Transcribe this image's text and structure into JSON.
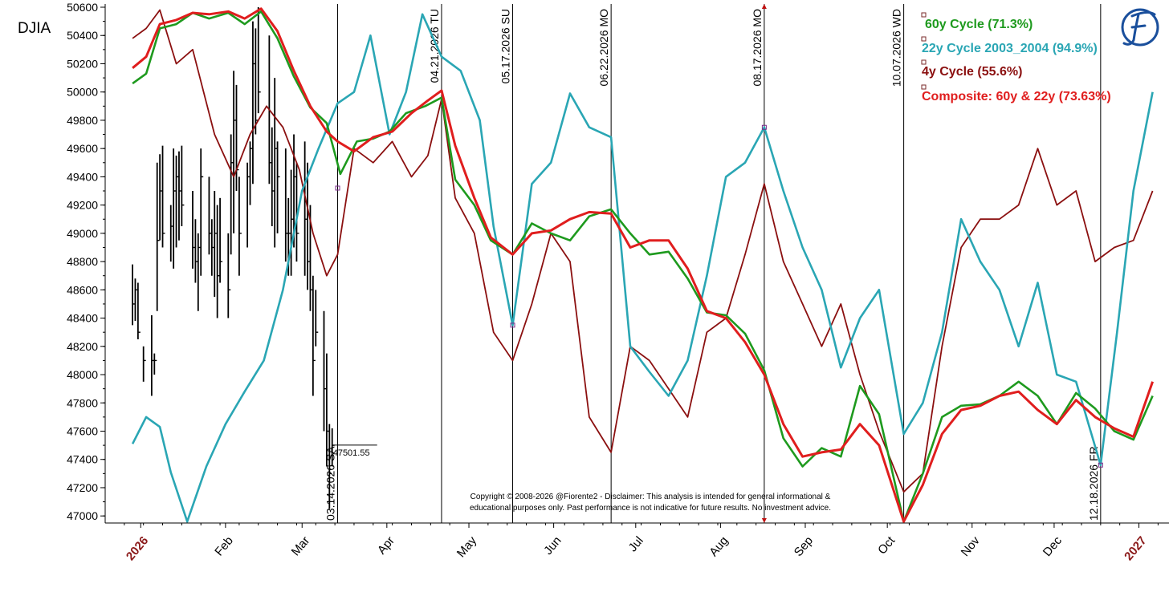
{
  "chart_data": {
    "type": "line",
    "title": "DJIA",
    "ylim": [
      46950,
      50600
    ],
    "y_ticks": [
      47000,
      47200,
      47400,
      47600,
      47800,
      48000,
      48200,
      48400,
      48600,
      48800,
      49000,
      49200,
      49400,
      49600,
      49800,
      50000,
      50200,
      50400,
      50600
    ],
    "x_labels": [
      {
        "label": "2026",
        "date": "2026-01-01",
        "year": true
      },
      {
        "label": "Feb",
        "date": "2026-02-01",
        "year": false
      },
      {
        "label": "Mar",
        "date": "2026-03-01",
        "year": false
      },
      {
        "label": "Apr",
        "date": "2026-04-01",
        "year": false
      },
      {
        "label": "May",
        "date": "2026-05-01",
        "year": false
      },
      {
        "label": "Jun",
        "date": "2026-06-01",
        "year": false
      },
      {
        "label": "Jul",
        "date": "2026-07-01",
        "year": false
      },
      {
        "label": "Aug",
        "date": "2026-08-01",
        "year": false
      },
      {
        "label": "Sep",
        "date": "2026-09-01",
        "year": false
      },
      {
        "label": "Oct",
        "date": "2026-10-01",
        "year": false
      },
      {
        "label": "Nov",
        "date": "2026-11-01",
        "year": false
      },
      {
        "label": "Dec",
        "date": "2026-12-01",
        "year": false
      },
      {
        "label": "2027",
        "date": "2027-01-01",
        "year": true
      }
    ],
    "vertical_markers": [
      {
        "label": "03.14.2026 SA",
        "date": "2026-03-14"
      },
      {
        "label": "04.21.2026 TU",
        "date": "2026-04-21"
      },
      {
        "label": "05.17.2026 SU",
        "date": "2026-05-17"
      },
      {
        "label": "06.22.2026 MO",
        "date": "2026-06-22"
      },
      {
        "label": "08.17.2026 MO",
        "date": "2026-08-17"
      },
      {
        "label": "10.07.2026 WD",
        "date": "2026-10-07"
      },
      {
        "label": "12.18.2026 FR",
        "date": "2026-12-18"
      }
    ],
    "last_price": {
      "value": 47501.55,
      "label": "47501.55"
    },
    "series": [
      {
        "name": "60y Cycle (71.3%)",
        "color": "#1e9a1e",
        "x": [
          "2025-12-29",
          "2026-01-03",
          "2026-01-08",
          "2026-01-14",
          "2026-01-20",
          "2026-01-26",
          "2026-02-02",
          "2026-02-08",
          "2026-02-14",
          "2026-02-20",
          "2026-02-26",
          "2026-03-04",
          "2026-03-10",
          "2026-03-15",
          "2026-03-21",
          "2026-03-27",
          "2026-04-02",
          "2026-04-08",
          "2026-04-15",
          "2026-04-21",
          "2026-04-26",
          "2026-05-03",
          "2026-05-09",
          "2026-05-17",
          "2026-05-24",
          "2026-05-31",
          "2026-06-07",
          "2026-06-14",
          "2026-06-22",
          "2026-06-29",
          "2026-07-06",
          "2026-07-13",
          "2026-07-20",
          "2026-07-27",
          "2026-08-03",
          "2026-08-10",
          "2026-08-17",
          "2026-08-24",
          "2026-08-31",
          "2026-09-07",
          "2026-09-14",
          "2026-09-21",
          "2026-09-28",
          "2026-10-07",
          "2026-10-14",
          "2026-10-21",
          "2026-10-28",
          "2026-11-04",
          "2026-11-11",
          "2026-11-18",
          "2026-11-25",
          "2026-12-02",
          "2026-12-09",
          "2026-12-16",
          "2026-12-23",
          "2026-12-30",
          "2027-01-06"
        ],
        "values": [
          50060,
          50130,
          50450,
          50480,
          50560,
          50520,
          50560,
          50480,
          50570,
          50380,
          50110,
          49890,
          49780,
          49420,
          49650,
          49670,
          49720,
          49850,
          49900,
          49960,
          49380,
          49200,
          48950,
          48850,
          49070,
          49000,
          48950,
          49120,
          49170,
          49000,
          48850,
          48870,
          48680,
          48440,
          48420,
          48290,
          48030,
          47550,
          47350,
          47480,
          47420,
          47920,
          47720,
          46960,
          47300,
          47700,
          47780,
          47790,
          47850,
          47950,
          47850,
          47650,
          47870,
          47760,
          47600,
          47540,
          47850
        ]
      },
      {
        "name": "22y Cycle 2003_2004 (94.9%)",
        "color": "#2aa6b4",
        "x": [
          "2025-12-29",
          "2026-01-03",
          "2026-01-08",
          "2026-01-12",
          "2026-01-18",
          "2026-01-25",
          "2026-02-01",
          "2026-02-08",
          "2026-02-15",
          "2026-02-22",
          "2026-03-01",
          "2026-03-07",
          "2026-03-14",
          "2026-03-20",
          "2026-03-26",
          "2026-04-02",
          "2026-04-08",
          "2026-04-14",
          "2026-04-21",
          "2026-04-28",
          "2026-05-05",
          "2026-05-10",
          "2026-05-17",
          "2026-05-24",
          "2026-05-31",
          "2026-06-07",
          "2026-06-14",
          "2026-06-22",
          "2026-06-29",
          "2026-07-06",
          "2026-07-13",
          "2026-07-20",
          "2026-07-27",
          "2026-08-03",
          "2026-08-10",
          "2026-08-17",
          "2026-08-24",
          "2026-08-31",
          "2026-09-07",
          "2026-09-14",
          "2026-09-21",
          "2026-09-28",
          "2026-10-07",
          "2026-10-14",
          "2026-10-21",
          "2026-10-28",
          "2026-11-04",
          "2026-11-11",
          "2026-11-18",
          "2026-11-25",
          "2026-12-02",
          "2026-12-09",
          "2026-12-18",
          "2026-12-24",
          "2026-12-30",
          "2027-01-06"
        ],
        "values": [
          47510,
          47700,
          47630,
          47310,
          46960,
          47350,
          47650,
          47880,
          48100,
          48600,
          49300,
          49600,
          49920,
          50000,
          50400,
          49700,
          50000,
          50550,
          50250,
          50150,
          49800,
          49050,
          48350,
          49350,
          49500,
          49990,
          49750,
          49680,
          48200,
          48020,
          47850,
          48100,
          48700,
          49400,
          49500,
          49750,
          49300,
          48900,
          48600,
          48050,
          48400,
          48600,
          47580,
          47800,
          48300,
          49100,
          48800,
          48600,
          48200,
          48650,
          48000,
          47950,
          47360,
          48300,
          49300,
          50000
        ]
      },
      {
        "name": "4y Cycle (55.6%)",
        "color": "#8b1010",
        "x": [
          "2025-12-29",
          "2026-01-03",
          "2026-01-08",
          "2026-01-14",
          "2026-01-20",
          "2026-01-28",
          "2026-02-04",
          "2026-02-10",
          "2026-02-16",
          "2026-02-22",
          "2026-02-28",
          "2026-03-05",
          "2026-03-10",
          "2026-03-14",
          "2026-03-20",
          "2026-03-27",
          "2026-04-03",
          "2026-04-10",
          "2026-04-16",
          "2026-04-21",
          "2026-04-26",
          "2026-05-03",
          "2026-05-10",
          "2026-05-17",
          "2026-05-24",
          "2026-05-31",
          "2026-06-07",
          "2026-06-14",
          "2026-06-22",
          "2026-06-29",
          "2026-07-06",
          "2026-07-13",
          "2026-07-20",
          "2026-07-27",
          "2026-08-03",
          "2026-08-10",
          "2026-08-17",
          "2026-08-24",
          "2026-08-31",
          "2026-09-07",
          "2026-09-14",
          "2026-09-21",
          "2026-09-28",
          "2026-10-07",
          "2026-10-14",
          "2026-10-21",
          "2026-10-28",
          "2026-11-04",
          "2026-11-11",
          "2026-11-18",
          "2026-11-25",
          "2026-12-02",
          "2026-12-09",
          "2026-12-16",
          "2026-12-23",
          "2026-12-30",
          "2027-01-06"
        ],
        "values": [
          50380,
          50450,
          50580,
          50200,
          50300,
          49700,
          49400,
          49700,
          49900,
          49750,
          49450,
          49000,
          48700,
          48850,
          49600,
          49500,
          49650,
          49400,
          49550,
          49950,
          49250,
          49000,
          48300,
          48100,
          48500,
          49000,
          48800,
          47700,
          47450,
          48200,
          48100,
          47900,
          47700,
          48300,
          48400,
          48850,
          49350,
          48800,
          48500,
          48200,
          48500,
          48000,
          47600,
          47170,
          47300,
          48200,
          48900,
          49100,
          49100,
          49200,
          49600,
          49200,
          49300,
          48800,
          48900,
          48950,
          49300
        ]
      },
      {
        "name": "Composite: 60y & 22y (73.63%)",
        "color": "#e01e1e",
        "x": [
          "2025-12-29",
          "2026-01-03",
          "2026-01-08",
          "2026-01-14",
          "2026-01-20",
          "2026-01-26",
          "2026-02-02",
          "2026-02-08",
          "2026-02-14",
          "2026-02-20",
          "2026-02-26",
          "2026-03-04",
          "2026-03-10",
          "2026-03-14",
          "2026-03-20",
          "2026-03-27",
          "2026-04-03",
          "2026-04-10",
          "2026-04-16",
          "2026-04-21",
          "2026-04-26",
          "2026-05-03",
          "2026-05-09",
          "2026-05-17",
          "2026-05-24",
          "2026-05-31",
          "2026-06-07",
          "2026-06-14",
          "2026-06-22",
          "2026-06-29",
          "2026-07-06",
          "2026-07-13",
          "2026-07-20",
          "2026-07-27",
          "2026-08-03",
          "2026-08-10",
          "2026-08-17",
          "2026-08-24",
          "2026-08-31",
          "2026-09-07",
          "2026-09-14",
          "2026-09-21",
          "2026-09-28",
          "2026-10-07",
          "2026-10-14",
          "2026-10-21",
          "2026-10-28",
          "2026-11-04",
          "2026-11-11",
          "2026-11-18",
          "2026-11-25",
          "2026-12-02",
          "2026-12-09",
          "2026-12-16",
          "2026-12-23",
          "2026-12-30",
          "2027-01-06"
        ],
        "values": [
          50170,
          50250,
          50480,
          50510,
          50560,
          50550,
          50570,
          50520,
          50590,
          50430,
          50150,
          49900,
          49720,
          49650,
          49580,
          49680,
          49720,
          49850,
          49940,
          50010,
          49620,
          49250,
          48970,
          48850,
          49000,
          49020,
          49100,
          49150,
          49140,
          48900,
          48950,
          48950,
          48750,
          48450,
          48400,
          48230,
          48000,
          47650,
          47420,
          47450,
          47470,
          47650,
          47500,
          46960,
          47220,
          47580,
          47750,
          47780,
          47850,
          47880,
          47750,
          47650,
          47820,
          47700,
          47620,
          47560,
          47950
        ]
      },
      {
        "name": "DJIA bars",
        "type": "ohlc",
        "color": "#000000",
        "x": [
          "2025-12-29",
          "2025-12-30",
          "2025-12-31",
          "2026-01-02",
          "2026-01-05",
          "2026-01-06",
          "2026-01-07",
          "2026-01-08",
          "2026-01-09",
          "2026-01-12",
          "2026-01-13",
          "2026-01-14",
          "2026-01-15",
          "2026-01-16",
          "2026-01-20",
          "2026-01-21",
          "2026-01-22",
          "2026-01-23",
          "2026-01-26",
          "2026-01-27",
          "2026-01-28",
          "2026-01-29",
          "2026-01-30",
          "2026-02-02",
          "2026-02-03",
          "2026-02-04",
          "2026-02-05",
          "2026-02-06",
          "2026-02-09",
          "2026-02-10",
          "2026-02-11",
          "2026-02-12",
          "2026-02-13",
          "2026-02-17",
          "2026-02-18",
          "2026-02-19",
          "2026-02-20",
          "2026-02-23",
          "2026-02-24",
          "2026-02-25",
          "2026-02-26",
          "2026-02-27",
          "2026-03-02",
          "2026-03-03",
          "2026-03-04",
          "2026-03-05",
          "2026-03-06",
          "2026-03-09",
          "2026-03-10",
          "2026-03-11",
          "2026-03-12"
        ],
        "high": [
          48780,
          48680,
          48650,
          48200,
          48420,
          48150,
          49500,
          49560,
          49620,
          49200,
          49600,
          49550,
          49580,
          49620,
          49300,
          49100,
          49000,
          49600,
          49400,
          49100,
          49300,
          49200,
          49250,
          49000,
          49700,
          50150,
          50050,
          49400,
          49500,
          49650,
          50500,
          50450,
          50600,
          50400,
          49750,
          50100,
          49650,
          49600,
          49250,
          49450,
          49700,
          49500,
          49650,
          49500,
          49200,
          48700,
          48600,
          48450,
          48150,
          47650,
          47620
        ],
        "low": [
          48350,
          48380,
          48250,
          47950,
          47850,
          48000,
          48450,
          48950,
          48900,
          48800,
          48750,
          48900,
          48950,
          49050,
          48750,
          48650,
          48450,
          48700,
          48850,
          48700,
          48550,
          48400,
          48650,
          48400,
          48850,
          49000,
          49300,
          48700,
          48900,
          49200,
          49350,
          49700,
          49850,
          49350,
          49050,
          48900,
          49000,
          48800,
          48700,
          48700,
          48900,
          48800,
          48700,
          48600,
          48450,
          47850,
          48200,
          47600,
          47350,
          47050,
          47350
        ],
        "close": [
          48500,
          48600,
          48300,
          48100,
          48100,
          48100,
          48950,
          49300,
          49000,
          49050,
          49300,
          49400,
          49300,
          49200,
          48900,
          48800,
          48900,
          49400,
          49000,
          48900,
          49000,
          48700,
          48800,
          48600,
          49500,
          49800,
          49450,
          49000,
          49400,
          49600,
          50200,
          49800,
          50000,
          49500,
          49300,
          49600,
          49400,
          49000,
          49000,
          49100,
          49400,
          49000,
          49100,
          48800,
          48600,
          48100,
          48300,
          47900,
          47600,
          47300,
          47500
        ]
      }
    ],
    "legend_position": "top-right",
    "copyright": "Copyright © 2008-2026 @Fiorente2 - Disclaimer: This analysis is intended for general informational & educational purposes only. Past performance is not indicative for future results. No investment advice."
  }
}
